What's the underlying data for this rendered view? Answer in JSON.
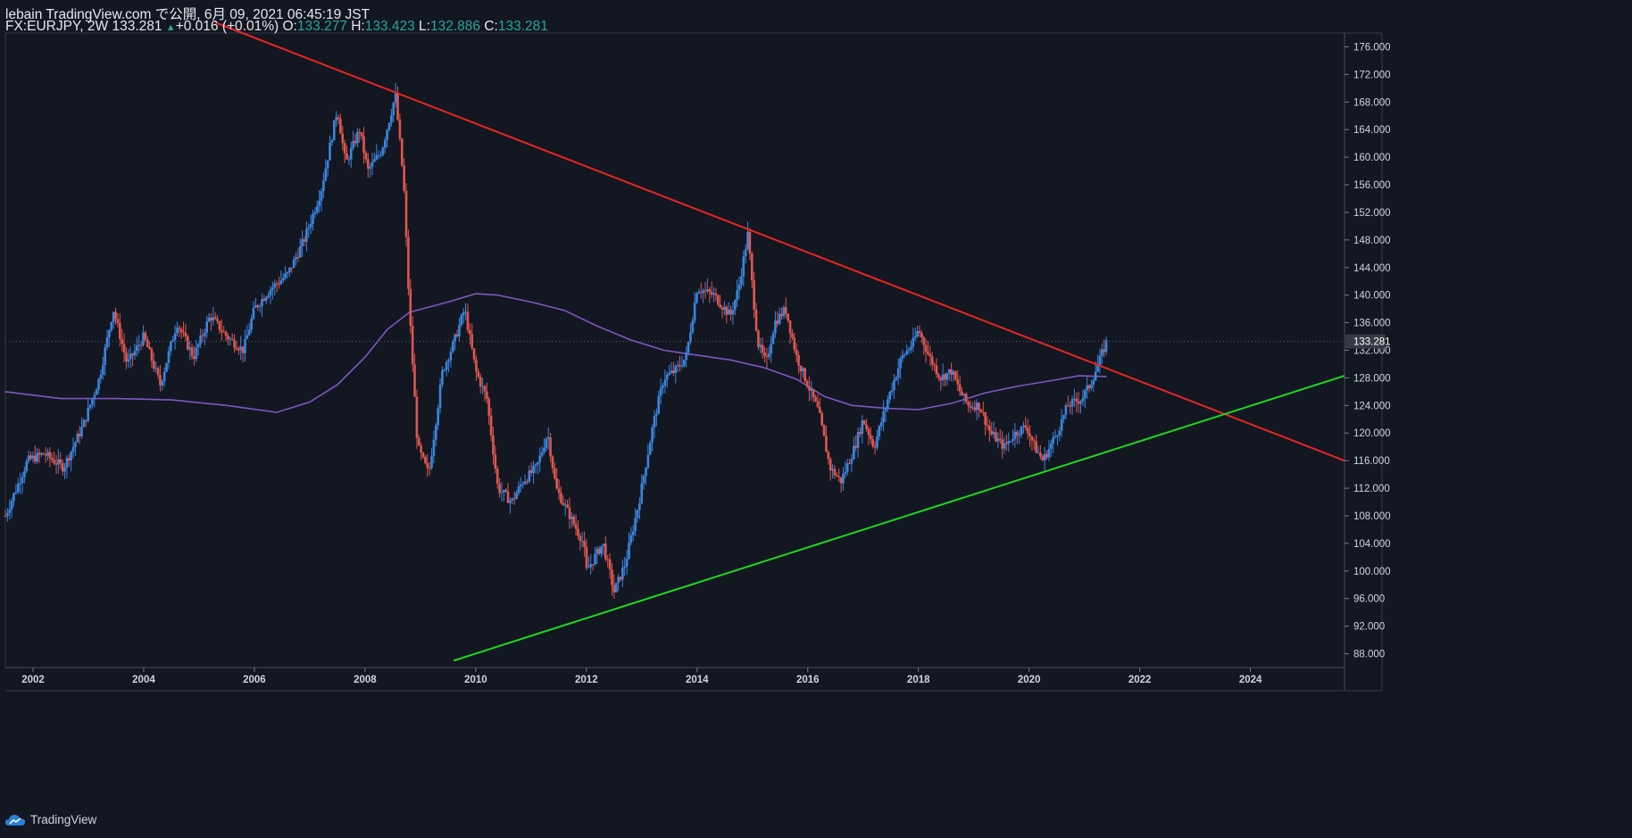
{
  "header": {
    "publisher_line": "lebain TradingView.com で公開, 6月 09, 2021 06:45:19 JST",
    "symbol": "FX:EURJPY, 2W",
    "last": "133.281",
    "change_arrow": "▲",
    "change": "+0.016 (+0.01%)",
    "o_label": "O:",
    "o": "133.277",
    "h_label": "H:",
    "h": "133.423",
    "l_label": "L:",
    "l": "132.886",
    "c_label": "C:",
    "c": "133.281"
  },
  "footer": {
    "brand": "TradingView"
  },
  "colors": {
    "background": "#131722",
    "up_candle": "#3a86e0",
    "down_candle": "#e0564e",
    "moving_average": "#7e57c2",
    "resistance_line": "#e8261f",
    "support_line": "#1fd81f",
    "last_price_badge": "#363a45",
    "axis_text": "#d1d4dc"
  },
  "chart_data": {
    "type": "candlestick",
    "symbol": "FX:EURJPY",
    "interval": "2W",
    "x_ticks": [
      "2002",
      "2004",
      "2006",
      "2008",
      "2010",
      "2012",
      "2014",
      "2016",
      "2018",
      "2020",
      "2022",
      "2024"
    ],
    "y_ticks": [
      "88.000",
      "92.000",
      "96.000",
      "100.000",
      "104.000",
      "108.000",
      "112.000",
      "116.000",
      "120.000",
      "124.000",
      "128.000",
      "132.000",
      "136.000",
      "140.000",
      "144.000",
      "148.000",
      "152.000",
      "156.000",
      "160.000",
      "164.000",
      "168.000",
      "172.000",
      "176.000"
    ],
    "ylim": [
      86,
      178
    ],
    "xlim": [
      2001.5,
      2025.7
    ],
    "last_price_label": "133.281",
    "price_path": [
      [
        2001.5,
        108
      ],
      [
        2001.9,
        116
      ],
      [
        2002.2,
        117
      ],
      [
        2002.55,
        115
      ],
      [
        2002.9,
        121
      ],
      [
        2003.2,
        128
      ],
      [
        2003.45,
        138
      ],
      [
        2003.7,
        130
      ],
      [
        2004.0,
        134
      ],
      [
        2004.3,
        127
      ],
      [
        2004.6,
        136
      ],
      [
        2004.9,
        131
      ],
      [
        2005.2,
        137
      ],
      [
        2005.5,
        134
      ],
      [
        2005.8,
        132
      ],
      [
        2006.0,
        138
      ],
      [
        2006.3,
        141
      ],
      [
        2006.6,
        143
      ],
      [
        2006.9,
        148
      ],
      [
        2007.2,
        155
      ],
      [
        2007.5,
        167
      ],
      [
        2007.65,
        159
      ],
      [
        2007.9,
        164
      ],
      [
        2008.05,
        158
      ],
      [
        2008.3,
        161
      ],
      [
        2008.55,
        169
      ],
      [
        2008.7,
        156
      ],
      [
        2008.8,
        138
      ],
      [
        2008.95,
        118
      ],
      [
        2009.15,
        114
      ],
      [
        2009.4,
        129
      ],
      [
        2009.6,
        133
      ],
      [
        2009.8,
        138
      ],
      [
        2010.0,
        129
      ],
      [
        2010.2,
        125
      ],
      [
        2010.4,
        112
      ],
      [
        2010.65,
        110
      ],
      [
        2010.85,
        113
      ],
      [
        2011.1,
        115
      ],
      [
        2011.3,
        120
      ],
      [
        2011.45,
        112
      ],
      [
        2011.7,
        108
      ],
      [
        2011.95,
        104
      ],
      [
        2012.0,
        100
      ],
      [
        2012.3,
        104
      ],
      [
        2012.5,
        97
      ],
      [
        2012.7,
        101
      ],
      [
        2012.95,
        110
      ],
      [
        2013.2,
        121
      ],
      [
        2013.4,
        128
      ],
      [
        2013.6,
        129
      ],
      [
        2013.8,
        131
      ],
      [
        2014.0,
        141
      ],
      [
        2014.3,
        140
      ],
      [
        2014.6,
        137
      ],
      [
        2014.75,
        141
      ],
      [
        2014.92,
        149
      ],
      [
        2015.0,
        141
      ],
      [
        2015.1,
        133
      ],
      [
        2015.25,
        130
      ],
      [
        2015.4,
        136
      ],
      [
        2015.6,
        138
      ],
      [
        2015.8,
        131
      ],
      [
        2016.0,
        127
      ],
      [
        2016.2,
        123
      ],
      [
        2016.4,
        115
      ],
      [
        2016.6,
        113
      ],
      [
        2016.85,
        118
      ],
      [
        2017.0,
        122
      ],
      [
        2017.2,
        118
      ],
      [
        2017.45,
        125
      ],
      [
        2017.7,
        131
      ],
      [
        2017.9,
        133
      ],
      [
        2018.0,
        135
      ],
      [
        2018.2,
        131
      ],
      [
        2018.4,
        128
      ],
      [
        2018.6,
        129
      ],
      [
        2018.75,
        126
      ],
      [
        2018.9,
        124
      ],
      [
        2019.1,
        124
      ],
      [
        2019.3,
        120
      ],
      [
        2019.55,
        118
      ],
      [
        2019.75,
        120
      ],
      [
        2019.95,
        121
      ],
      [
        2020.1,
        118
      ],
      [
        2020.25,
        116
      ],
      [
        2020.5,
        120
      ],
      [
        2020.7,
        124
      ],
      [
        2020.95,
        125
      ],
      [
        2021.1,
        127
      ],
      [
        2021.25,
        130
      ],
      [
        2021.4,
        133.28
      ]
    ],
    "moving_average": [
      [
        2001.5,
        126
      ],
      [
        2002.5,
        125
      ],
      [
        2003.5,
        125
      ],
      [
        2004.5,
        124.8
      ],
      [
        2005.5,
        124
      ],
      [
        2006.4,
        123
      ],
      [
        2007.0,
        124.5
      ],
      [
        2007.5,
        127
      ],
      [
        2008.0,
        131
      ],
      [
        2008.4,
        135
      ],
      [
        2008.8,
        137.5
      ],
      [
        2009.5,
        139
      ],
      [
        2010.0,
        140.2
      ],
      [
        2010.4,
        140
      ],
      [
        2011.0,
        139
      ],
      [
        2011.6,
        137.8
      ],
      [
        2012.2,
        135.5
      ],
      [
        2012.8,
        133.5
      ],
      [
        2013.4,
        132
      ],
      [
        2014.0,
        131.3
      ],
      [
        2014.6,
        130.6
      ],
      [
        2015.2,
        129.5
      ],
      [
        2015.8,
        127.8
      ],
      [
        2016.3,
        125.3
      ],
      [
        2016.8,
        124
      ],
      [
        2017.4,
        123.6
      ],
      [
        2018.0,
        123.4
      ],
      [
        2018.6,
        124.3
      ],
      [
        2019.2,
        125.8
      ],
      [
        2019.8,
        126.8
      ],
      [
        2020.4,
        127.6
      ],
      [
        2020.9,
        128.3
      ],
      [
        2021.4,
        128.2
      ]
    ],
    "trendlines": [
      {
        "role": "resistance",
        "points": [
          [
            2005.3,
            179.5
          ],
          [
            2025.7,
            116
          ]
        ]
      },
      {
        "role": "support",
        "points": [
          [
            2009.6,
            87
          ],
          [
            2025.7,
            128.3
          ]
        ]
      }
    ]
  }
}
